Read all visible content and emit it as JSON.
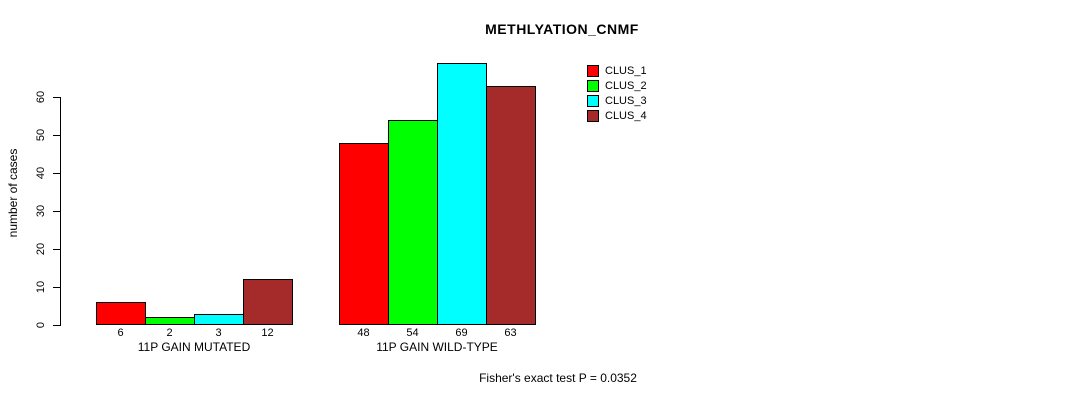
{
  "title": "METHLYATION_CNMF",
  "footer": "Fisher's exact test P = 0.0352",
  "chart_data": {
    "type": "bar",
    "title": "METHLYATION_CNMF",
    "xlabel": "",
    "ylabel": "number of cases",
    "ylim": [
      0,
      69
    ],
    "yticks": [
      0,
      10,
      20,
      30,
      40,
      50,
      60
    ],
    "grid": false,
    "legend_position": "top-right",
    "background": "#ffffff",
    "axis_color": "#000000",
    "categories": [
      "11P GAIN MUTATED",
      "11P GAIN WILD-TYPE"
    ],
    "series": [
      {
        "name": "CLUS_1",
        "color": "#ff0000",
        "values": [
          6,
          48
        ]
      },
      {
        "name": "CLUS_2",
        "color": "#00ff00",
        "values": [
          2,
          54
        ]
      },
      {
        "name": "CLUS_3",
        "color": "#00ffff",
        "values": [
          3,
          69
        ]
      },
      {
        "name": "CLUS_4",
        "color": "#a52a2a",
        "values": [
          12,
          63
        ]
      }
    ],
    "groups": [
      {
        "label": "11P GAIN MUTATED",
        "values": [
          6,
          2,
          3,
          12
        ]
      },
      {
        "label": "11P GAIN WILD-TYPE",
        "values": [
          48,
          54,
          69,
          63
        ]
      }
    ],
    "bar_value_labels_shown": true,
    "annotation": "Fisher's exact test P = 0.0352"
  }
}
